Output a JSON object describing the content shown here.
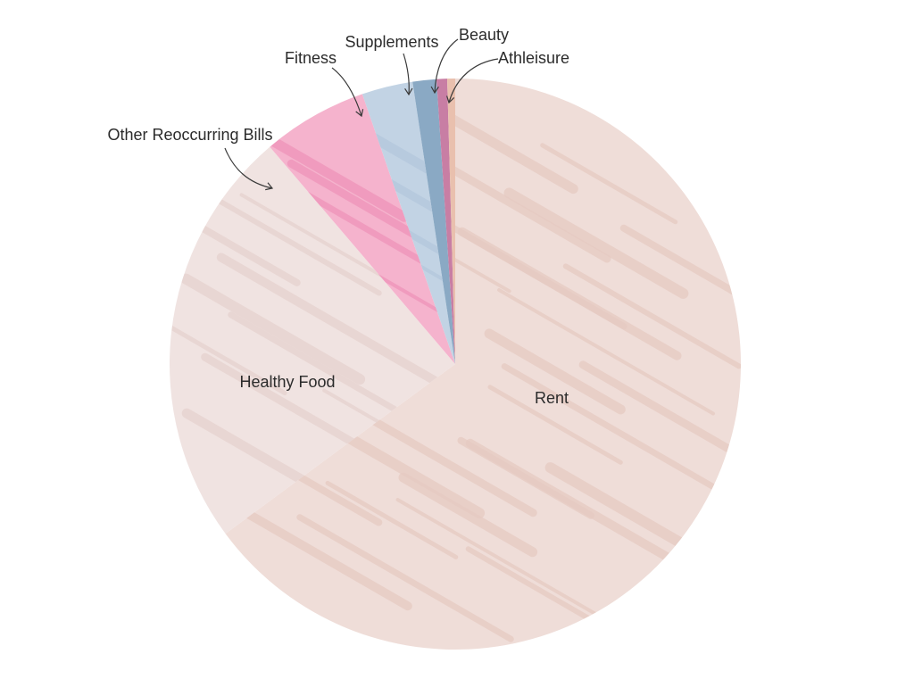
{
  "chart_data": {
    "type": "pie",
    "title": "",
    "start": "top",
    "direction": "clockwise",
    "slices": [
      {
        "label": "Rent",
        "value": 65.2,
        "color": "#efddd8",
        "texture": "#e5c9c1",
        "label_position": "inside"
      },
      {
        "label": "Healthy Food",
        "value": 24.0,
        "color": "#f0e3e1",
        "texture": "#e6d2ce",
        "label_position": "inside"
      },
      {
        "label": "Other Reoccurring Bills",
        "value": 6.0,
        "color": "#f5b3cd",
        "texture": "#ee93b8",
        "label_position": "outside"
      },
      {
        "label": "Fitness",
        "value": 2.9,
        "color": "#c2d3e4",
        "texture": "#b3c7dc",
        "label_position": "outside"
      },
      {
        "label": "Supplements",
        "value": 1.35,
        "color": "#8aa9c4",
        "texture": "#7c9cb9",
        "label_position": "outside"
      },
      {
        "label": "Beauty",
        "value": 0.6,
        "color": "#c87ea4",
        "texture": "#b86e95",
        "label_position": "outside"
      },
      {
        "label": "Athleisure",
        "value": 0.45,
        "color": "#e9c0ae",
        "texture": "#deae9b",
        "label_position": "outside"
      }
    ]
  }
}
